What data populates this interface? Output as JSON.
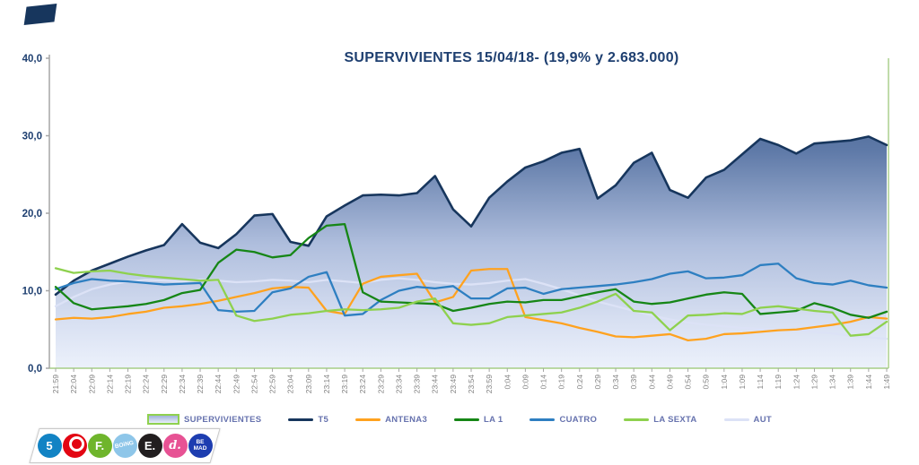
{
  "title": {
    "text": "SUPERVIVIENTES 15/04/18- (19,9% y 2.683.000)",
    "color": "#1E3F70"
  },
  "axis": {
    "label_color": "#808080",
    "tick_color": "#A6A6A6",
    "ylabel_color": "#1E3F70",
    "plot_border_color": "#A5CE86"
  },
  "chart_data": {
    "type": "line",
    "title": "SUPERVIVIENTES 15/04/18- (19,9% y 2.683.000)",
    "xlabel": "",
    "ylabel": "",
    "ylim": [
      0,
      40
    ],
    "ytick_values": [
      0,
      10,
      20,
      30,
      40
    ],
    "ytick_labels": [
      "0,0",
      "10,0",
      "20,0",
      "30,0",
      "40,0"
    ],
    "grid": false,
    "legend_position": "bottom",
    "x_labels": [
      "21:59",
      "22:04",
      "22:09",
      "22:14",
      "22:19",
      "22:24",
      "22:29",
      "22:34",
      "22:39",
      "22:44",
      "22:49",
      "22:54",
      "22:59",
      "23:04",
      "23:09",
      "23:14",
      "23:19",
      "23:24",
      "23:29",
      "23:34",
      "23:39",
      "23:44",
      "23:49",
      "23:54",
      "23:59",
      "0:04",
      "0:09",
      "0:14",
      "0:19",
      "0:24",
      "0:29",
      "0:34",
      "0:39",
      "0:44",
      "0:49",
      "0:54",
      "0:59",
      "1:04",
      "1:09",
      "1:14",
      "1:19",
      "1:24",
      "1:29",
      "1:34",
      "1:39",
      "1:44",
      "1:49"
    ],
    "series": [
      {
        "name": "T5",
        "type": "area",
        "color": "#17365D",
        "fill_stops": [
          [
            "0%",
            "#33527F"
          ],
          [
            "30%",
            "#5F7AA8"
          ],
          [
            "60%",
            "#AFBEDD"
          ],
          [
            "85%",
            "#D8E0F2"
          ],
          [
            "100%",
            "#ECF1FB"
          ]
        ],
        "values": [
          9.5,
          11.3,
          12.6,
          13.5,
          14.4,
          15.2,
          15.9,
          18.6,
          16.2,
          15.5,
          17.3,
          19.7,
          19.9,
          16.3,
          15.8,
          19.6,
          21.0,
          22.3,
          22.4,
          22.3,
          22.6,
          24.8,
          20.5,
          18.3,
          22.0,
          24.1,
          25.9,
          26.7,
          27.8,
          28.3,
          21.9,
          23.6,
          26.5,
          27.8,
          23.0,
          22.0,
          24.6,
          25.6,
          27.6,
          29.6,
          28.8,
          27.7,
          29.0,
          29.2,
          29.4,
          29.9,
          28.8
        ]
      },
      {
        "name": "AUT",
        "type": "line",
        "color": "#DCE2F6",
        "values": [
          8.0,
          9.2,
          10.2,
          10.8,
          11.2,
          11.4,
          11.3,
          11.2,
          11.4,
          11.3,
          11.1,
          11.2,
          11.4,
          11.3,
          11.1,
          11.4,
          11.2,
          11.0,
          11.4,
          11.6,
          11.4,
          11.1,
          10.9,
          10.8,
          11.0,
          11.3,
          11.5,
          10.9,
          10.2,
          9.4,
          8.6,
          8.0,
          7.4,
          6.8,
          6.3,
          5.9,
          5.6,
          5.4,
          5.2,
          5.1,
          5.0,
          4.9,
          4.7,
          4.5,
          4.2,
          4.0,
          3.8
        ]
      },
      {
        "name": "ANTENA3",
        "type": "line",
        "color": "#FFA21F",
        "values": [
          6.3,
          6.5,
          6.4,
          6.6,
          7.0,
          7.3,
          7.8,
          8.0,
          8.3,
          8.7,
          9.2,
          9.7,
          10.3,
          10.5,
          10.4,
          7.4,
          7.0,
          10.9,
          11.8,
          12.0,
          12.2,
          8.5,
          9.2,
          12.6,
          12.8,
          12.8,
          6.6,
          6.2,
          5.8,
          5.2,
          4.7,
          4.1,
          4.0,
          4.2,
          4.4,
          3.6,
          3.8,
          4.4,
          4.5,
          4.7,
          4.9,
          5.0,
          5.3,
          5.6,
          6.0,
          6.6,
          6.4
        ]
      },
      {
        "name": "CUATRO",
        "type": "line",
        "color": "#2E7FC1",
        "values": [
          10.2,
          11.0,
          11.5,
          11.3,
          11.2,
          11.0,
          10.8,
          10.9,
          11.0,
          7.5,
          7.3,
          7.4,
          9.8,
          10.3,
          11.8,
          12.4,
          6.8,
          7.0,
          8.8,
          10.0,
          10.5,
          10.3,
          10.6,
          9.0,
          9.0,
          10.3,
          10.4,
          9.6,
          10.2,
          10.4,
          10.6,
          10.8,
          11.1,
          11.5,
          12.2,
          12.5,
          11.6,
          11.7,
          12.0,
          13.3,
          13.5,
          11.6,
          11.0,
          10.8,
          11.3,
          10.7,
          10.4
        ]
      },
      {
        "name": "LA 1",
        "type": "line",
        "color": "#168616",
        "values": [
          10.5,
          8.4,
          7.6,
          7.8,
          8.0,
          8.3,
          8.8,
          9.7,
          10.1,
          13.6,
          15.3,
          15.0,
          14.3,
          14.6,
          16.8,
          18.4,
          18.6,
          9.8,
          8.6,
          8.5,
          8.4,
          8.3,
          7.4,
          7.8,
          8.3,
          8.6,
          8.5,
          8.8,
          8.8,
          9.3,
          9.8,
          10.2,
          8.6,
          8.3,
          8.5,
          9.0,
          9.5,
          9.8,
          9.6,
          7.0,
          7.2,
          7.4,
          8.4,
          7.8,
          6.9,
          6.5,
          7.3
        ]
      },
      {
        "name": "LA SEXTA",
        "type": "line",
        "color": "#8ED14E",
        "values": [
          12.9,
          12.3,
          12.5,
          12.6,
          12.2,
          11.9,
          11.7,
          11.5,
          11.3,
          11.4,
          6.8,
          6.1,
          6.4,
          6.9,
          7.1,
          7.4,
          7.6,
          7.5,
          7.6,
          7.8,
          8.6,
          9.0,
          5.8,
          5.6,
          5.8,
          6.6,
          6.8,
          7.0,
          7.2,
          7.8,
          8.6,
          9.6,
          7.4,
          7.2,
          4.9,
          6.8,
          6.9,
          7.1,
          7.0,
          7.8,
          8.0,
          7.7,
          7.4,
          7.2,
          4.2,
          4.4,
          6.0
        ]
      }
    ]
  },
  "legend": {
    "text_color": "#6672AE",
    "items": [
      {
        "label": "SUPERVIVIENTES",
        "swatch": "area",
        "color": "#8FD14F"
      },
      {
        "label": "T5",
        "swatch": "line",
        "color": "#17365D"
      },
      {
        "label": "ANTENA3",
        "swatch": "line",
        "color": "#FFA21F"
      },
      {
        "label": "LA 1",
        "swatch": "line",
        "color": "#168616"
      },
      {
        "label": "CUATRO",
        "swatch": "line",
        "color": "#2E7FC1"
      },
      {
        "label": "LA SEXTA",
        "swatch": "line",
        "color": "#8ED14E"
      },
      {
        "label": "AUT",
        "swatch": "line",
        "color": "#DCE2F6"
      }
    ]
  },
  "logos": [
    {
      "name": "telecinco",
      "bg": "#1283C4",
      "glyph": "5"
    },
    {
      "name": "cuatro",
      "bg": "#E30613",
      "glyph": ""
    },
    {
      "name": "fdf",
      "bg": "#6FB52C",
      "glyph": "F."
    },
    {
      "name": "boing",
      "bg": "#8EC6E9",
      "glyph": "BOiNG"
    },
    {
      "name": "energy",
      "bg": "#221E1F",
      "glyph": "E."
    },
    {
      "name": "divinity",
      "bg": "#E75294",
      "glyph": "d."
    },
    {
      "name": "bemad",
      "bg": "#1D3DB0",
      "glyph": "BE\nMAD"
    }
  ]
}
